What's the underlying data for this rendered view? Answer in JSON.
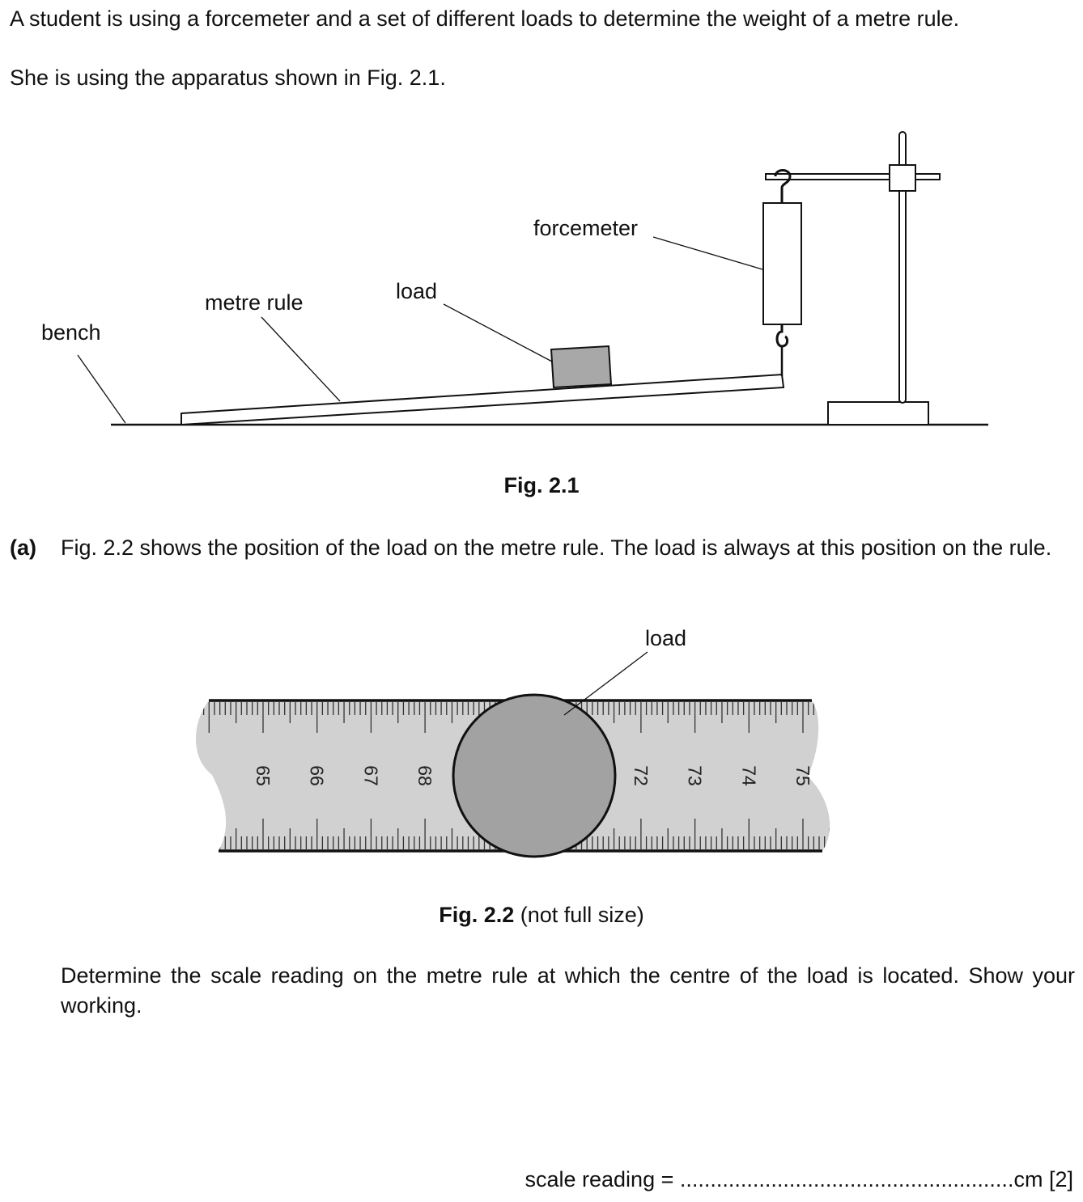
{
  "intro": {
    "line1": "A student is using a forcemeter and a set of different loads to determine the weight of a metre rule.",
    "line2": "She is using the apparatus shown in Fig. 2.1."
  },
  "fig1": {
    "labels": {
      "forcemeter": "forcemeter",
      "load": "load",
      "metre_rule": "metre rule",
      "bench": "bench"
    },
    "caption": "Fig. 2.1"
  },
  "part_a": {
    "label": "(a)",
    "text": "Fig. 2.2 shows the position of the load on the metre rule. The load is always at this position on the rule."
  },
  "fig2": {
    "label_load": "load",
    "ruler_numbers": [
      "65",
      "66",
      "67",
      "68",
      "72",
      "73",
      "74",
      "75"
    ],
    "caption_bold": "Fig. 2.2",
    "caption_rest": " (not full size)"
  },
  "question": {
    "text": "Determine the scale reading on the metre rule at which the centre of the load is located. Show your working."
  },
  "answer": {
    "label": "scale reading = ",
    "dots": ".......................................................",
    "unit": "cm",
    "marks": "[2]"
  }
}
